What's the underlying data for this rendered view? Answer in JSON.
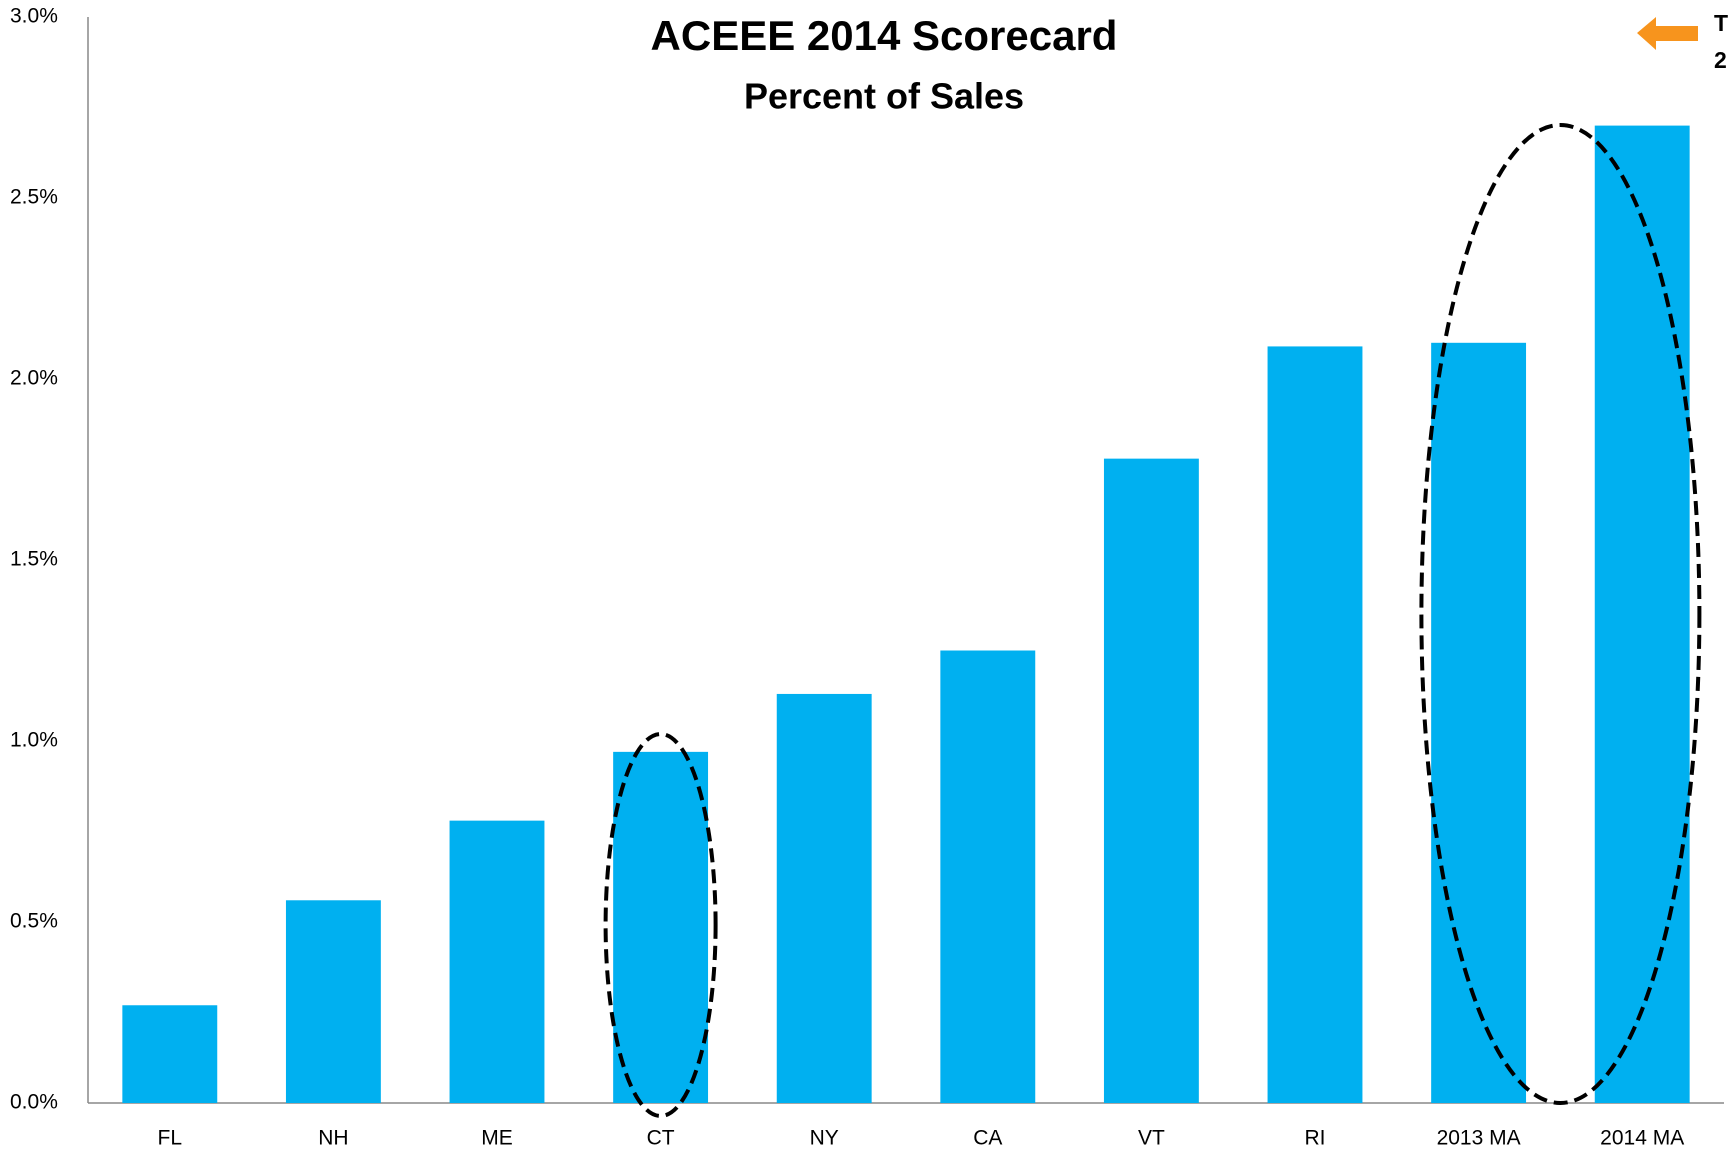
{
  "chart_data": {
    "type": "bar",
    "title": "ACEEE 2014 Scorecard",
    "subtitle": "Percent of Sales",
    "categories": [
      "FL",
      "NH",
      "ME",
      "CT",
      "NY",
      "CA",
      "VT",
      "RI",
      "2013 MA",
      "2014 MA"
    ],
    "values": [
      0.27,
      0.56,
      0.78,
      0.97,
      1.13,
      1.25,
      1.78,
      2.09,
      2.1,
      2.7
    ],
    "color": "#00b0f0",
    "ylim": [
      0,
      3
    ],
    "yticks": [
      {
        "value": 0,
        "label": "0.0%"
      },
      {
        "value": 0.5,
        "label": "0.5%"
      },
      {
        "value": 1,
        "label": "1.0%"
      },
      {
        "value": 1.5,
        "label": "1.5%"
      },
      {
        "value": 2,
        "label": "2.0%"
      },
      {
        "value": 2.5,
        "label": "2.5%"
      },
      {
        "value": 3,
        "label": "3.0%"
      }
    ],
    "grid": false,
    "annotation": [
      "T",
      "2"
    ]
  }
}
